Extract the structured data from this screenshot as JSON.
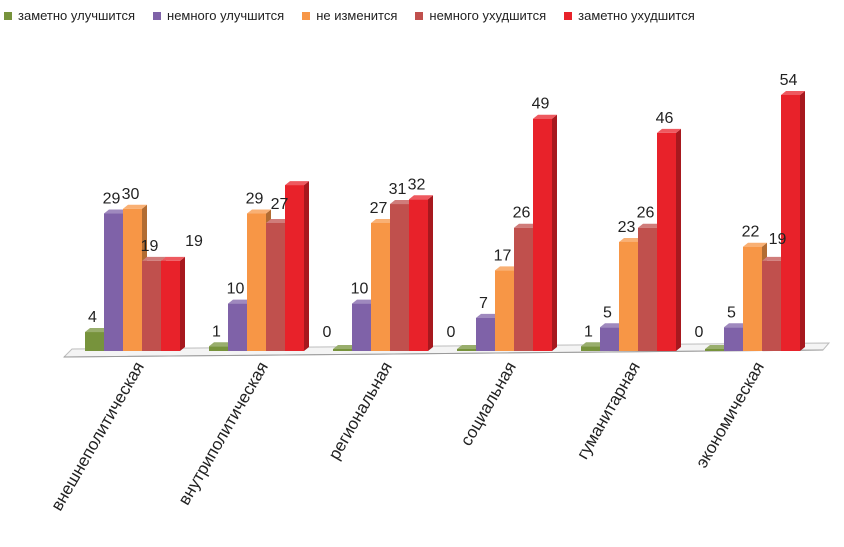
{
  "chart_data": {
    "type": "bar",
    "categories": [
      "внешнеполитическая",
      "внутриполитическая",
      "региональная",
      "социальная",
      "гуманитарная",
      "экономическая"
    ],
    "series": [
      {
        "name": "заметно улучшится",
        "values": [
          4,
          1,
          0,
          0,
          1,
          0
        ],
        "color": "#77933C"
      },
      {
        "name": "немного улучшится",
        "values": [
          29,
          10,
          10,
          7,
          5,
          5
        ],
        "color": "#7F62A8"
      },
      {
        "name": "не изменится",
        "values": [
          30,
          29,
          27,
          17,
          23,
          22
        ],
        "color": "#F79646"
      },
      {
        "name": "немного ухудшится",
        "values": [
          19,
          27,
          31,
          26,
          26,
          19
        ],
        "color": "#C0504D"
      },
      {
        "name": "заметно ухудшится",
        "values": [
          19,
          35,
          32,
          49,
          46,
          54
        ],
        "color": "#E8222A"
      }
    ],
    "data_labels": [
      [
        "4",
        "29",
        "30",
        "19",
        "19"
      ],
      [
        "1",
        "10",
        "29",
        "27",
        ""
      ],
      [
        "0",
        "10",
        "27",
        "31",
        "32"
      ],
      [
        "0",
        "7",
        "17",
        "26",
        "49"
      ],
      [
        "1",
        "5",
        "23",
        "26",
        "46"
      ],
      [
        "0",
        "5",
        "22",
        "19",
        "54"
      ]
    ],
    "ylim": [
      0,
      56
    ],
    "legend_position": "top",
    "grid": false
  }
}
